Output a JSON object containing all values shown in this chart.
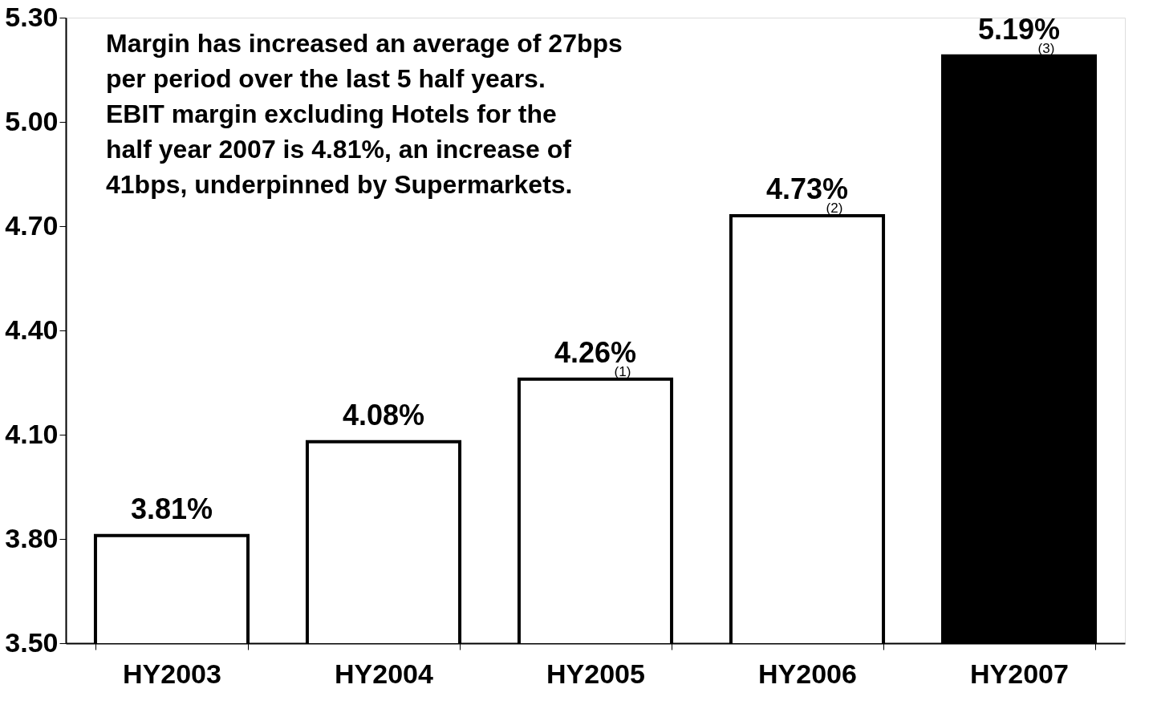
{
  "chart_data": {
    "type": "bar",
    "categories": [
      "HY2003",
      "HY2004",
      "HY2005",
      "HY2006",
      "HY2007"
    ],
    "values": [
      3.81,
      4.08,
      4.26,
      4.73,
      5.19
    ],
    "colors": [
      "#ffffff",
      "#ffffff",
      "#ffffff",
      "#ffffff",
      "#000000"
    ],
    "value_labels": [
      "3.81%",
      "4.08%",
      "4.26%",
      "4.73%",
      "5.19%"
    ],
    "ylim": [
      3.5,
      5.3
    ],
    "yticks": [
      {
        "value": 3.5,
        "label": "3.50"
      },
      {
        "value": 3.8,
        "label": "3.80"
      },
      {
        "value": 4.1,
        "label": "4.10"
      },
      {
        "value": 4.4,
        "label": "4.40"
      },
      {
        "value": 4.7,
        "label": "4.70"
      },
      {
        "value": 5.0,
        "label": "5.00"
      },
      {
        "value": 5.3,
        "label": "5.30"
      }
    ],
    "grid": false,
    "legend": false,
    "annotations": [
      "Margin has increased an average of 27bps per period over the last 5 half years.  EBIT margin excluding Hotels for the half year 2007 is 4.81%, an increase of 41bps, underpinned by Supermarkets.",
      {
        "text": "(1)",
        "x": "HY2005",
        "y": 4.26
      },
      {
        "text": "(2)",
        "x": "HY2006",
        "y": 4.73
      },
      {
        "text": "(3)",
        "x": "HY2007",
        "y": 5.19
      }
    ]
  }
}
